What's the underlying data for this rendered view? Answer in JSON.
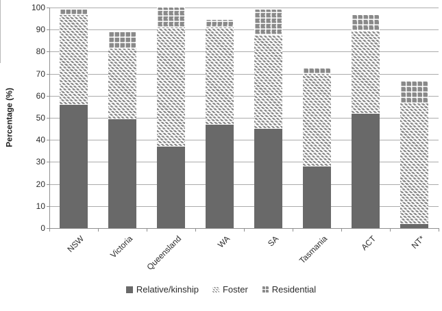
{
  "chart_data": {
    "type": "bar",
    "stacked": true,
    "title": "",
    "xlabel": "",
    "ylabel": "Percentage (%)",
    "ylim": [
      0,
      100
    ],
    "yticks": [
      0,
      10,
      20,
      30,
      40,
      50,
      60,
      70,
      80,
      90,
      100
    ],
    "grid": true,
    "legend_position": "bottom",
    "categories": [
      "NSW",
      "Victoria",
      "Queensland",
      "WA",
      "SA",
      "Tasmania",
      "ACT",
      "NT*"
    ],
    "series": [
      {
        "name": "Relative/kinship",
        "pattern": "solid",
        "color": "#696969",
        "values": [
          56,
          49.5,
          37,
          47,
          45,
          28,
          52,
          2
        ]
      },
      {
        "name": "Foster",
        "pattern": "diagonal-hatch",
        "color": "#8c8c8c",
        "values": [
          40.5,
          32,
          54,
          44,
          42.5,
          42,
          37.5,
          54.5
        ]
      },
      {
        "name": "Residential",
        "pattern": "checker-grid",
        "color": "#8a8a8a",
        "values": [
          3,
          7.5,
          9,
          3.5,
          11.5,
          2.5,
          7,
          10
        ]
      }
    ],
    "totals": [
      99.5,
      89,
      100,
      94.5,
      99,
      72.5,
      96.5,
      66.5
    ]
  },
  "style_colors": {
    "bar_solid": "#696969",
    "pattern_gray": "#8c8c8c",
    "gridline": "#ababab",
    "axis": "#8f8f8f",
    "text": "#2b2b2b"
  }
}
